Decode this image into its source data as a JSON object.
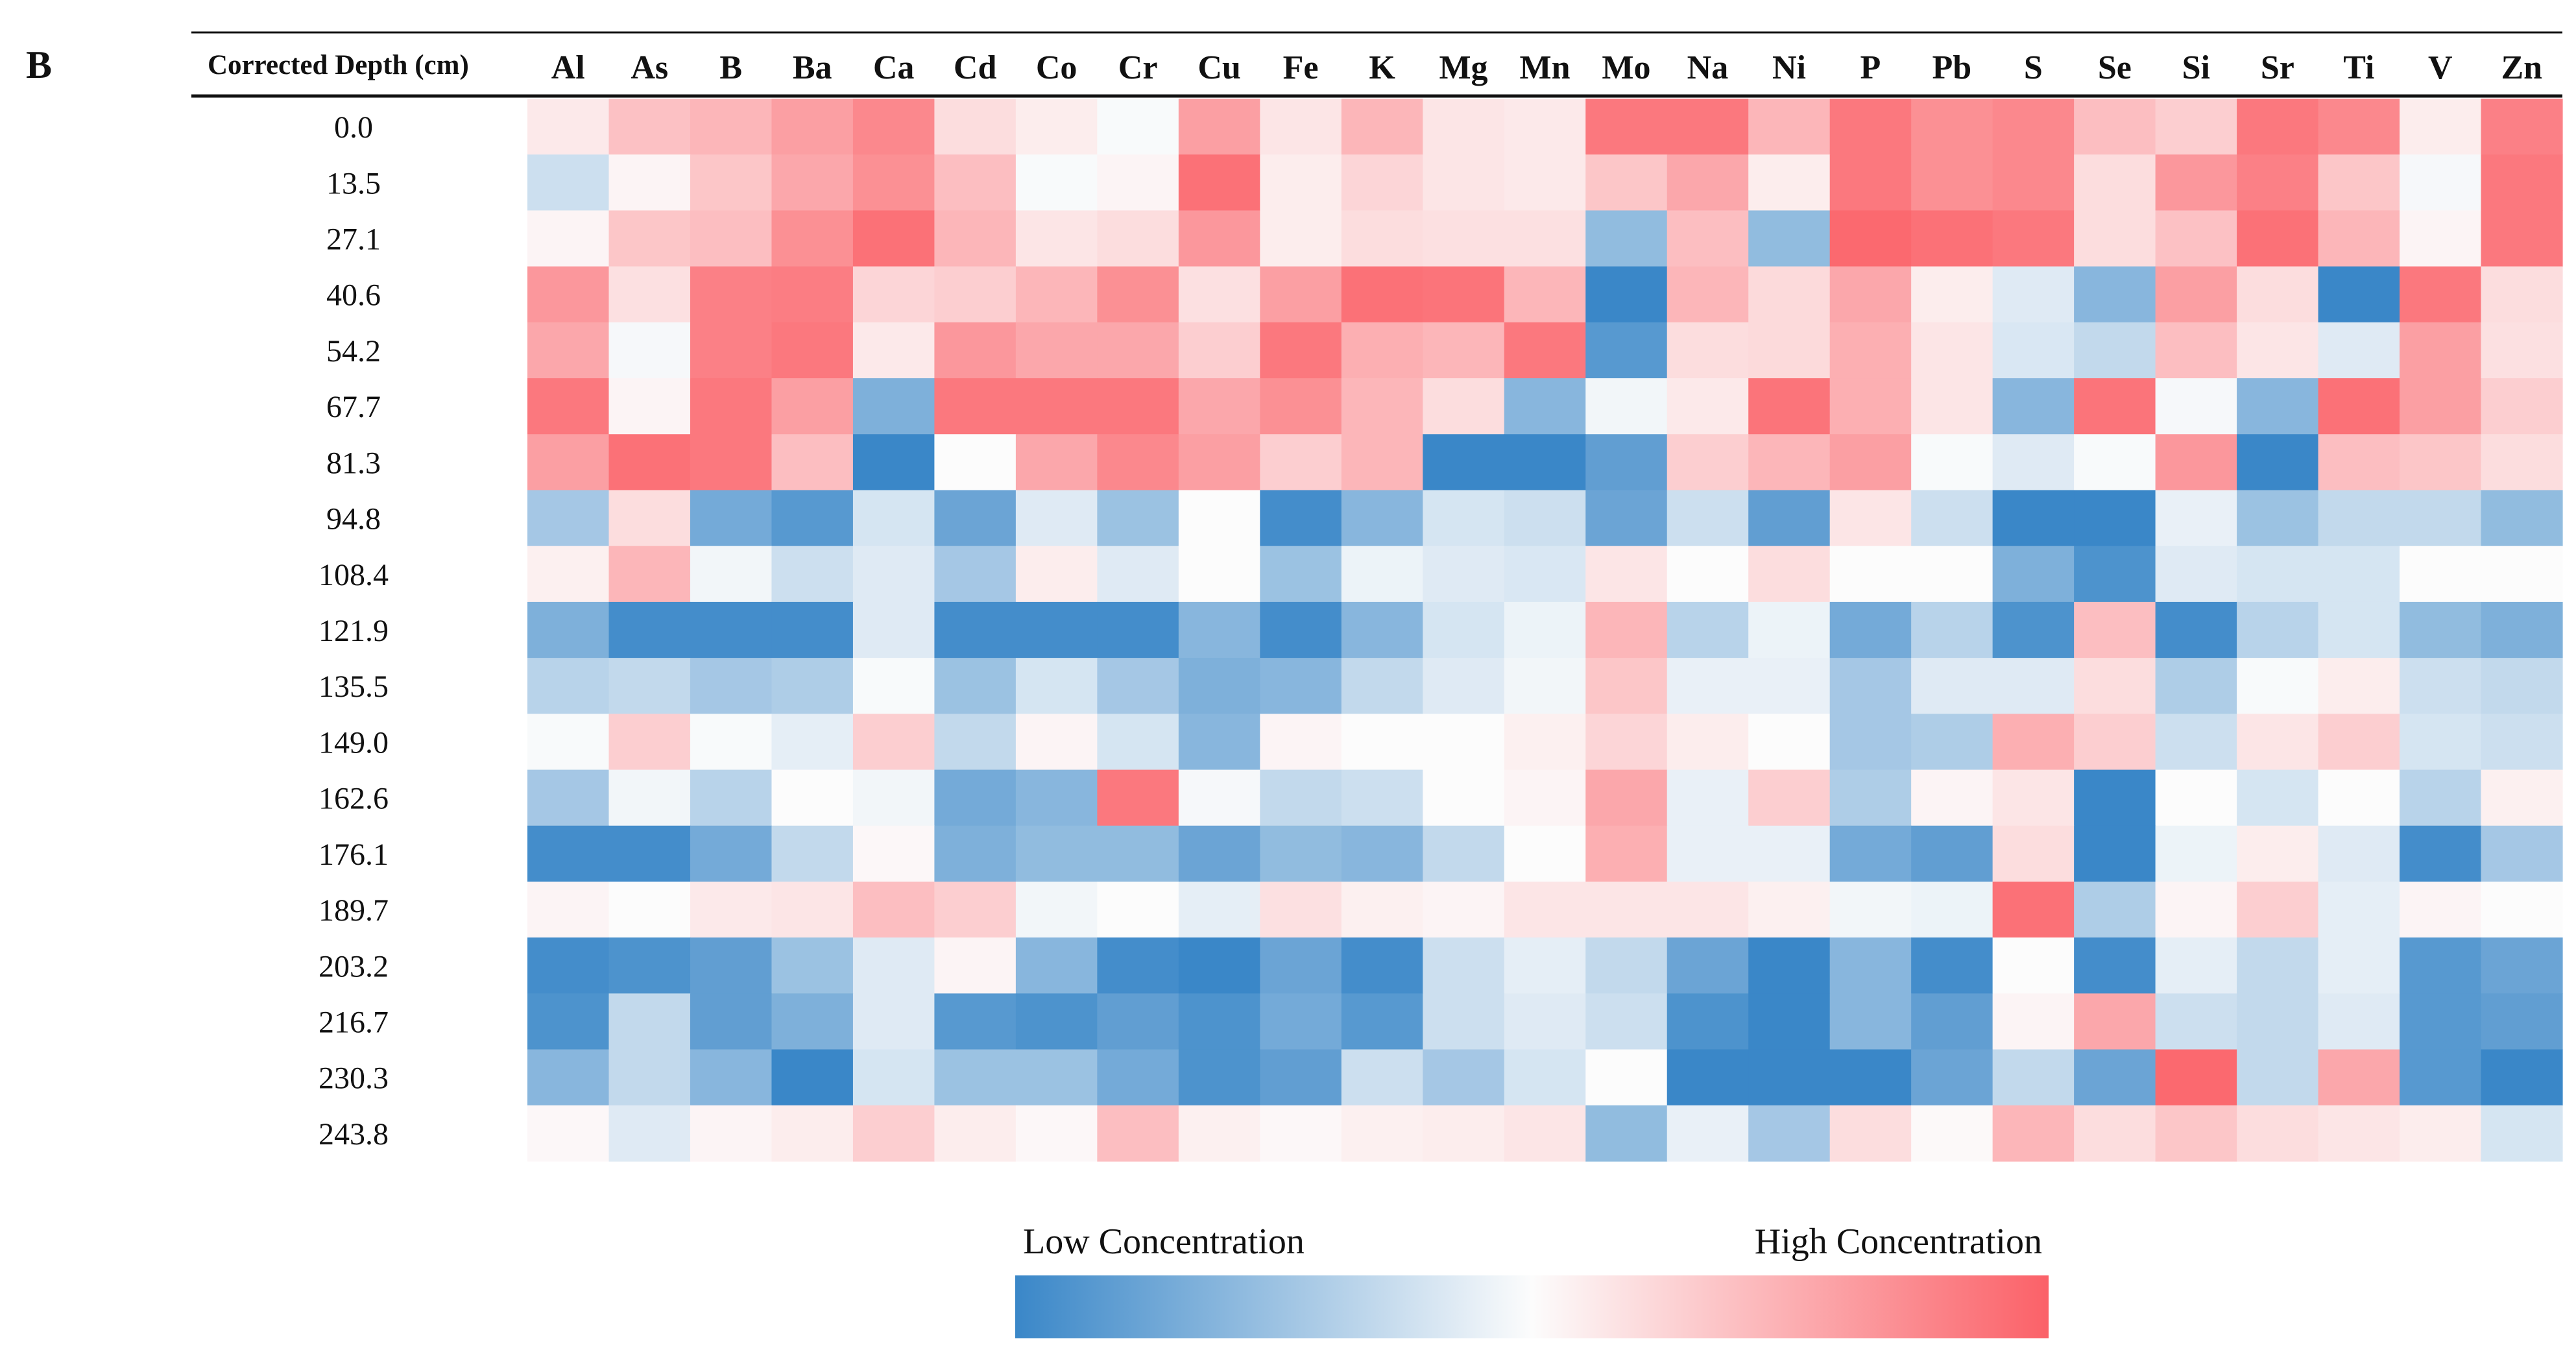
{
  "panel_label": "B",
  "chart_data": {
    "type": "heatmap",
    "row_header": "Corrected Depth (cm)",
    "columns": [
      "Al",
      "As",
      "B",
      "Ba",
      "Ca",
      "Cd",
      "Co",
      "Cr",
      "Cu",
      "Fe",
      "K",
      "Mg",
      "Mn",
      "Mo",
      "Na",
      "Ni",
      "P",
      "Pb",
      "S",
      "Se",
      "Si",
      "Sr",
      "Ti",
      "V",
      "Zn"
    ],
    "rows": [
      "0.0",
      "13.5",
      "27.1",
      "40.6",
      "54.2",
      "67.7",
      "81.3",
      "94.8",
      "108.4",
      "121.9",
      "135.5",
      "149.0",
      "162.6",
      "176.1",
      "189.7",
      "203.2",
      "216.7",
      "230.3",
      "243.8"
    ],
    "scale": {
      "min": -1,
      "max": 1,
      "min_label": "Low Concentration",
      "max_label": "High Concentration"
    },
    "colors": {
      "low": "#3a87c8",
      "mid": "#fcfcfc",
      "high": "#fb6168"
    },
    "values": [
      [
        0.12,
        0.38,
        0.45,
        0.6,
        0.75,
        0.2,
        0.1,
        -0.02,
        0.6,
        0.15,
        0.45,
        0.15,
        0.12,
        0.85,
        0.85,
        0.45,
        0.85,
        0.7,
        0.75,
        0.4,
        0.3,
        0.85,
        0.75,
        0.1,
        0.8
      ],
      [
        -0.25,
        0.05,
        0.35,
        0.55,
        0.7,
        0.4,
        -0.02,
        0.05,
        0.9,
        0.1,
        0.25,
        0.15,
        0.12,
        0.35,
        0.55,
        0.1,
        0.85,
        0.7,
        0.75,
        0.2,
        0.65,
        0.8,
        0.35,
        -0.03,
        0.85
      ],
      [
        0.05,
        0.35,
        0.4,
        0.7,
        0.9,
        0.45,
        0.15,
        0.2,
        0.65,
        0.1,
        0.2,
        0.18,
        0.18,
        -0.55,
        0.4,
        -0.55,
        0.95,
        0.9,
        0.85,
        0.2,
        0.38,
        0.9,
        0.45,
        0.05,
        0.85
      ],
      [
        0.65,
        0.18,
        0.8,
        0.82,
        0.25,
        0.3,
        0.45,
        0.7,
        0.18,
        0.6,
        0.9,
        0.88,
        0.45,
        -1.0,
        0.45,
        0.22,
        0.55,
        0.1,
        -0.15,
        -0.6,
        0.6,
        0.2,
        -1.0,
        0.85,
        0.2
      ],
      [
        0.55,
        -0.03,
        0.8,
        0.85,
        0.12,
        0.65,
        0.55,
        0.55,
        0.3,
        0.85,
        0.5,
        0.45,
        0.85,
        -0.85,
        0.2,
        0.22,
        0.5,
        0.15,
        -0.18,
        -0.3,
        0.4,
        0.15,
        -0.15,
        0.6,
        0.18
      ],
      [
        0.85,
        0.05,
        0.85,
        0.6,
        -0.65,
        0.85,
        0.85,
        0.85,
        0.55,
        0.7,
        0.45,
        0.2,
        -0.6,
        -0.05,
        0.12,
        0.88,
        0.5,
        0.15,
        -0.6,
        0.88,
        -0.03,
        -0.6,
        0.9,
        0.6,
        0.3
      ],
      [
        0.6,
        0.9,
        0.85,
        0.4,
        -1.0,
        0.0,
        0.55,
        0.75,
        0.6,
        0.3,
        0.45,
        -1.0,
        -1.0,
        -0.8,
        0.3,
        0.45,
        0.6,
        -0.02,
        -0.15,
        -0.02,
        0.65,
        -1.0,
        0.4,
        0.35,
        0.2
      ],
      [
        -0.45,
        0.2,
        -0.7,
        -0.85,
        -0.2,
        -0.75,
        -0.15,
        -0.5,
        0.0,
        -0.95,
        -0.6,
        -0.2,
        -0.25,
        -0.75,
        -0.25,
        -0.8,
        0.15,
        -0.25,
        -1.0,
        -1.0,
        -0.1,
        -0.5,
        -0.3,
        -0.3,
        -0.55
      ],
      [
        0.08,
        0.45,
        -0.05,
        -0.25,
        -0.15,
        -0.45,
        0.1,
        -0.15,
        0.0,
        -0.5,
        -0.08,
        -0.15,
        -0.18,
        0.15,
        0.0,
        0.2,
        0.0,
        0.0,
        -0.65,
        -0.9,
        -0.15,
        -0.2,
        -0.2,
        0.0,
        0.0
      ],
      [
        -0.65,
        -0.95,
        -0.95,
        -0.95,
        -0.15,
        -0.95,
        -0.95,
        -0.95,
        -0.6,
        -0.95,
        -0.6,
        -0.2,
        -0.08,
        0.45,
        -0.35,
        -0.08,
        -0.7,
        -0.35,
        -0.9,
        0.4,
        -0.95,
        -0.35,
        -0.2,
        -0.55,
        -0.65
      ],
      [
        -0.35,
        -0.3,
        -0.45,
        -0.4,
        -0.02,
        -0.5,
        -0.2,
        -0.45,
        -0.65,
        -0.6,
        -0.3,
        -0.15,
        -0.05,
        0.35,
        -0.1,
        -0.1,
        -0.45,
        -0.15,
        -0.15,
        0.2,
        -0.4,
        -0.02,
        0.1,
        -0.25,
        -0.3
      ],
      [
        -0.02,
        0.3,
        -0.02,
        -0.12,
        0.3,
        -0.3,
        0.05,
        -0.2,
        -0.6,
        0.05,
        0.0,
        0.0,
        0.08,
        0.25,
        0.1,
        0.0,
        -0.45,
        -0.4,
        0.5,
        0.3,
        -0.25,
        0.15,
        0.3,
        -0.2,
        -0.25
      ],
      [
        -0.45,
        -0.05,
        -0.35,
        0.0,
        -0.05,
        -0.7,
        -0.6,
        0.85,
        -0.03,
        -0.3,
        -0.25,
        0.0,
        0.05,
        0.55,
        -0.1,
        0.3,
        -0.4,
        0.05,
        0.15,
        -1.0,
        0.0,
        -0.2,
        0.0,
        -0.35,
        0.08
      ],
      [
        -0.95,
        -0.95,
        -0.7,
        -0.3,
        0.03,
        -0.65,
        -0.55,
        -0.55,
        -0.75,
        -0.55,
        -0.6,
        -0.3,
        0.0,
        0.5,
        -0.1,
        -0.1,
        -0.7,
        -0.8,
        0.2,
        -1.0,
        -0.08,
        0.1,
        -0.15,
        -0.95,
        -0.45
      ],
      [
        0.05,
        0.0,
        0.12,
        0.15,
        0.4,
        0.3,
        -0.05,
        0.0,
        -0.12,
        0.18,
        0.08,
        0.05,
        0.15,
        0.15,
        0.15,
        0.08,
        -0.05,
        -0.08,
        0.9,
        -0.4,
        0.05,
        0.3,
        -0.12,
        0.05,
        0.0
      ],
      [
        -0.95,
        -0.9,
        -0.8,
        -0.5,
        -0.15,
        0.05,
        -0.6,
        -0.95,
        -1.0,
        -0.75,
        -0.95,
        -0.25,
        -0.12,
        -0.3,
        -0.75,
        -1.0,
        -0.6,
        -0.95,
        0.0,
        -0.95,
        -0.12,
        -0.3,
        -0.12,
        -0.85,
        -0.75
      ],
      [
        -0.9,
        -0.3,
        -0.8,
        -0.65,
        -0.15,
        -0.85,
        -0.9,
        -0.8,
        -0.9,
        -0.7,
        -0.85,
        -0.25,
        -0.15,
        -0.25,
        -0.9,
        -1.0,
        -0.6,
        -0.8,
        0.05,
        0.55,
        -0.25,
        -0.3,
        -0.15,
        -0.85,
        -0.8
      ],
      [
        -0.6,
        -0.3,
        -0.6,
        -1.0,
        -0.2,
        -0.5,
        -0.5,
        -0.7,
        -0.9,
        -0.8,
        -0.25,
        -0.45,
        -0.2,
        0.0,
        -1.0,
        -1.0,
        -1.0,
        -0.75,
        -0.3,
        -0.75,
        0.95,
        -0.3,
        0.55,
        -0.85,
        -1.0
      ],
      [
        0.03,
        -0.15,
        0.05,
        0.1,
        0.3,
        0.1,
        0.03,
        0.4,
        0.08,
        0.03,
        0.08,
        0.1,
        0.15,
        -0.55,
        -0.1,
        -0.45,
        0.2,
        0.02,
        0.45,
        0.2,
        0.35,
        0.2,
        0.15,
        0.1,
        -0.2
      ]
    ]
  }
}
